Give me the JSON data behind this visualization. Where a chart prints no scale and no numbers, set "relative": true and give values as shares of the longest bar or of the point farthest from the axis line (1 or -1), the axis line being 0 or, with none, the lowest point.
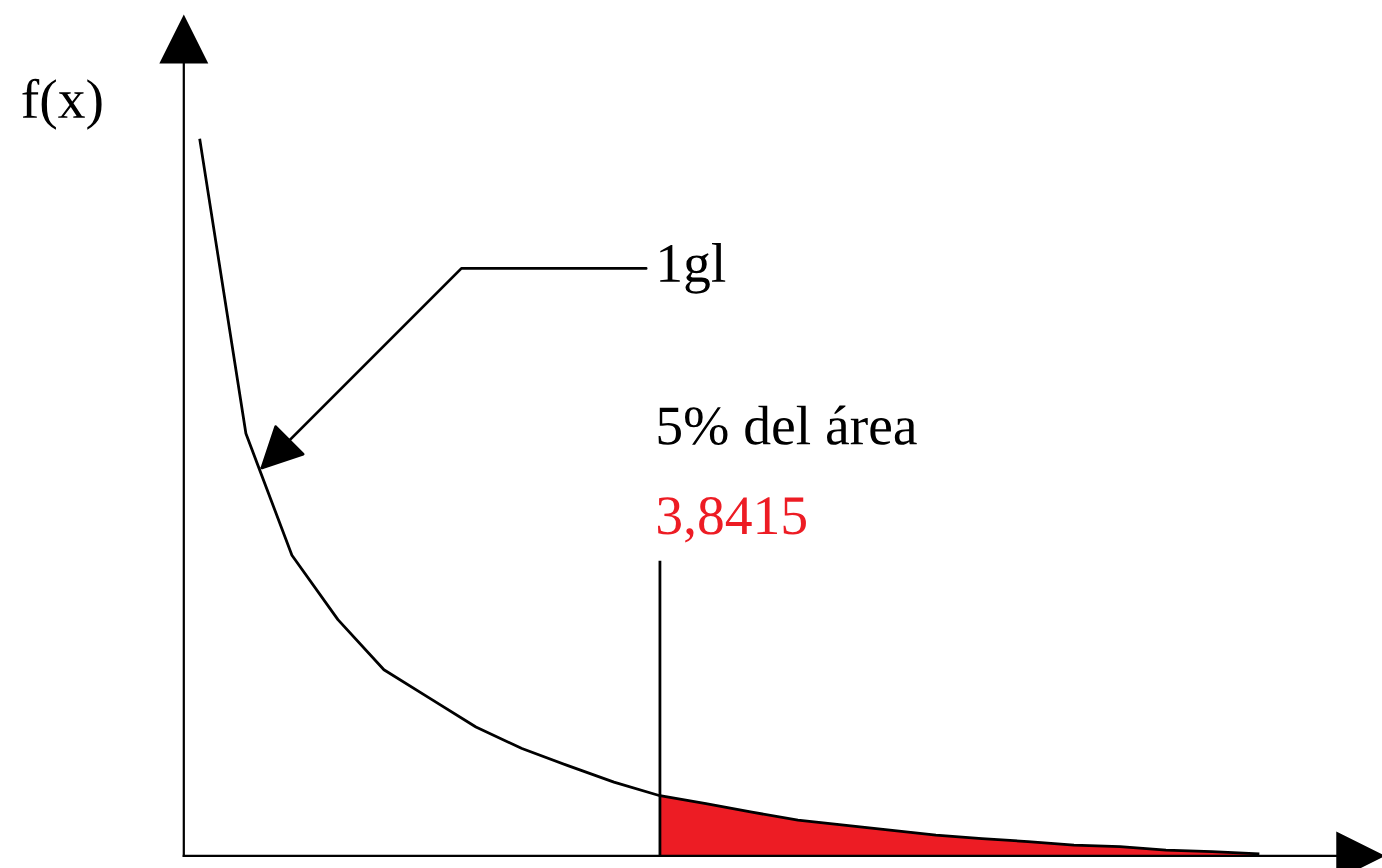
{
  "chart_data": {
    "type": "line",
    "relative": true,
    "ylabel": "f(x)",
    "categories": [
      null,
      null,
      null,
      null,
      null,
      null,
      null,
      null,
      null,
      null,
      null,
      null,
      null,
      null,
      null,
      null,
      null,
      null,
      null,
      null,
      null,
      null,
      null,
      null
    ],
    "series": [
      {
        "color": "#000000",
        "values": [
          1,
          0.59,
          0.42,
          0.33,
          0.26,
          0.22,
          0.18,
          0.15,
          0.126,
          0.103,
          0.084,
          0.073,
          0.061,
          0.05,
          0.043,
          0.036,
          0.029,
          0.024,
          0.02,
          0.015,
          0.013,
          0.008,
          0.006,
          0.003
        ]
      },
      {
        "type": "area",
        "color": "#ed1c24",
        "values": [
          null,
          null,
          null,
          null,
          null,
          null,
          null,
          null,
          null,
          null,
          0.084,
          0.073,
          0.061,
          0.05,
          0.043,
          0.036,
          0.029,
          0.024,
          0.02,
          0.015,
          0.013,
          0.008,
          0.006,
          0.003
        ]
      }
    ],
    "annotations": [
      "1gl",
      "5% del área",
      "3,8415"
    ]
  }
}
